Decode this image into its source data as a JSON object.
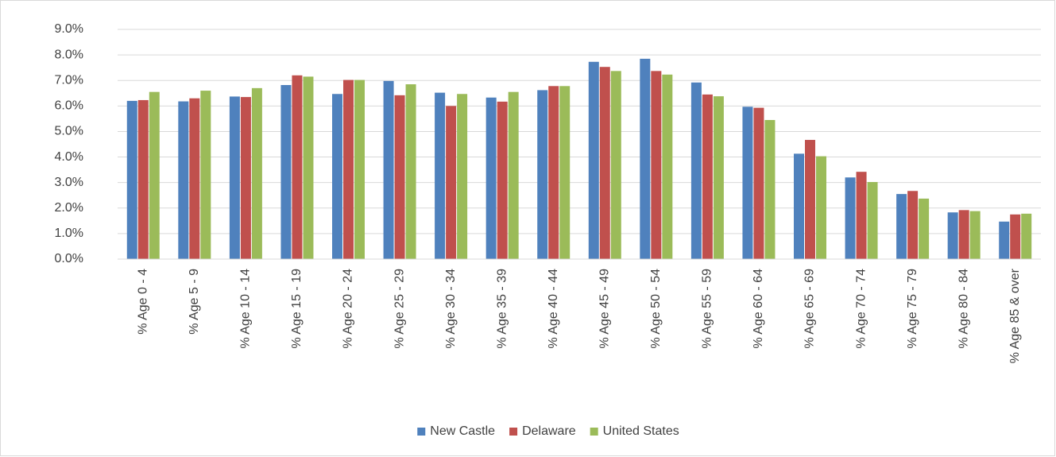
{
  "chart_data": {
    "type": "bar",
    "categories": [
      "% Age 0 - 4",
      "% Age 5 - 9",
      "% Age 10 - 14",
      "% Age 15 - 19",
      "% Age 20 - 24",
      "% Age 25 - 29",
      "% Age 30 - 34",
      "% Age 35 - 39",
      "% Age 40 - 44",
      "% Age 45 - 49",
      "% Age 50 - 54",
      "% Age 55 - 59",
      "% Age 60 - 64",
      "% Age 65 - 69",
      "% Age 70 - 74",
      "% Age 75 - 79",
      "% Age 80 - 84",
      "% Age 85 & over"
    ],
    "series": [
      {
        "name": "New Castle",
        "color": "#4f81bd",
        "values": [
          6.2,
          6.18,
          6.37,
          6.82,
          6.47,
          6.98,
          6.52,
          6.33,
          6.62,
          7.73,
          7.85,
          6.92,
          5.97,
          4.13,
          3.2,
          2.55,
          1.83,
          1.47
        ]
      },
      {
        "name": "Delaware",
        "color": "#c0504d",
        "values": [
          6.23,
          6.3,
          6.35,
          7.2,
          7.02,
          6.42,
          6.0,
          6.17,
          6.78,
          7.53,
          7.37,
          6.45,
          5.93,
          4.67,
          3.42,
          2.67,
          1.92,
          1.75
        ]
      },
      {
        "name": "United States",
        "color": "#9bbb59",
        "values": [
          6.55,
          6.6,
          6.7,
          7.15,
          7.02,
          6.85,
          6.47,
          6.55,
          6.78,
          7.37,
          7.23,
          6.38,
          5.45,
          4.03,
          3.02,
          2.37,
          1.88,
          1.78
        ]
      }
    ],
    "ylim": [
      0,
      9
    ],
    "yticks": [
      {
        "value": 0,
        "label": "0.0%"
      },
      {
        "value": 1,
        "label": "1.0%"
      },
      {
        "value": 2,
        "label": "2.0%"
      },
      {
        "value": 3,
        "label": "3.0%"
      },
      {
        "value": 4,
        "label": "4.0%"
      },
      {
        "value": 5,
        "label": "5.0%"
      },
      {
        "value": 6,
        "label": "6.0%"
      },
      {
        "value": 7,
        "label": "7.0%"
      },
      {
        "value": 8,
        "label": "8.0%"
      },
      {
        "value": 9,
        "label": "9.0%"
      }
    ],
    "grid": true,
    "legend": "bottom"
  }
}
